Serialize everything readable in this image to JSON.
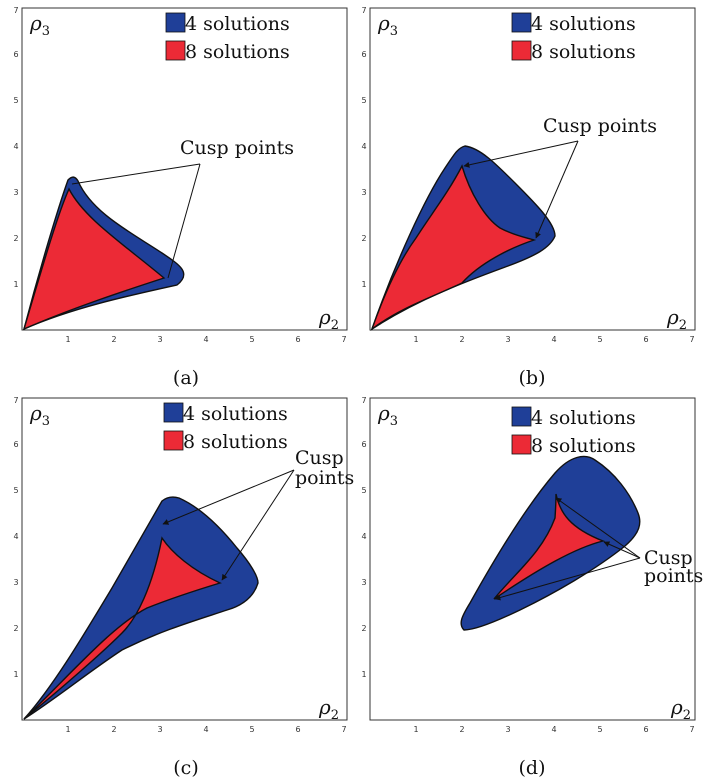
{
  "legend": {
    "blue_label": "4 solutions",
    "red_label": "8 solutions",
    "blue_color": "#1f3f98",
    "red_color": "#ec2a36"
  },
  "axis": {
    "x_symbol": "ρ",
    "x_subscript": "2",
    "y_symbol": "ρ",
    "y_subscript": "3",
    "ticks": [
      "1",
      "2",
      "3",
      "4",
      "5",
      "6",
      "7"
    ]
  },
  "panels": [
    {
      "id": "a",
      "caption": "(a)",
      "annotation_lines": [
        "Cusp points"
      ]
    },
    {
      "id": "b",
      "caption": "(b)",
      "annotation_lines": [
        "Cusp points"
      ]
    },
    {
      "id": "c",
      "caption": "(c)",
      "annotation_lines": [
        "Cusp",
        "points"
      ]
    },
    {
      "id": "d",
      "caption": "(d)",
      "annotation_lines": [
        "Cusp",
        "points"
      ]
    }
  ]
}
